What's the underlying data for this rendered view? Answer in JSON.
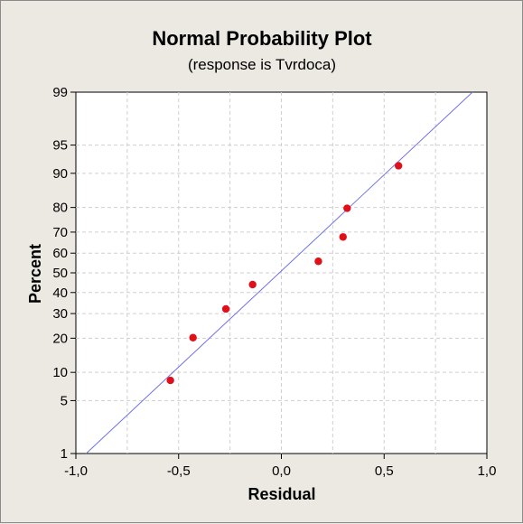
{
  "chart_data": {
    "type": "scatter",
    "title": "Normal Probability Plot",
    "subtitle": "(response is Tvrdoca)",
    "xlabel": "Residual",
    "ylabel": "Percent",
    "xlim": [
      -1.0,
      1.0
    ],
    "ylim_percent": [
      1,
      99
    ],
    "y_scale": "normal-probability",
    "grid": true,
    "x_ticks": [
      -1.0,
      -0.5,
      0.0,
      0.5,
      1.0
    ],
    "x_tick_labels": [
      "-1,0",
      "-0,5",
      "0,0",
      "0,5",
      "1,0"
    ],
    "x_minor_grid": [
      -0.75,
      -0.25,
      0.25,
      0.75
    ],
    "y_ticks": [
      1,
      5,
      10,
      20,
      30,
      40,
      50,
      60,
      70,
      80,
      90,
      95,
      99
    ],
    "y_tick_labels": [
      "1",
      "5",
      "10",
      "20",
      "30",
      "40",
      "50",
      "60",
      "70",
      "80",
      "90",
      "95",
      "99"
    ],
    "points": [
      {
        "x": -0.54,
        "y": 8.3
      },
      {
        "x": -0.43,
        "y": 20.2
      },
      {
        "x": -0.27,
        "y": 32.1
      },
      {
        "x": -0.14,
        "y": 44.0
      },
      {
        "x": 0.18,
        "y": 55.9
      },
      {
        "x": 0.3,
        "y": 67.8
      },
      {
        "x": 0.32,
        "y": 79.7
      },
      {
        "x": 0.57,
        "y": 91.6
      }
    ],
    "fit_line": {
      "x_at_1pct": -0.95,
      "x_at_99pct": 0.93
    },
    "colors": {
      "points": "#e0101a",
      "fit_line": "#7070e8",
      "grid": "#cfcfcf",
      "plot_background": "#ffffff",
      "figure_background": "#ece9e3"
    }
  }
}
